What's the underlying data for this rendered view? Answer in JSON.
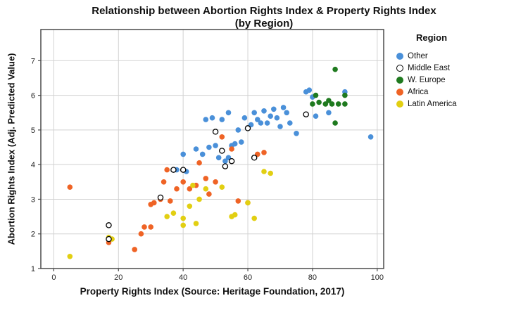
{
  "chart_data": {
    "type": "scatter",
    "title": "Relationship between Abortion Rights Index & Property Rights Index (by Region)",
    "title_lines": [
      "Relationship between Abortion Rights Index & Property Rights Index",
      "(by Region)"
    ],
    "xlabel": "Property Rights Index (Source: Heritage Foundation, 2017)",
    "ylabel": "Abortion Rights Index (Adj. Predicted Value)",
    "xlim": [
      -4,
      102
    ],
    "ylim": [
      1,
      7.9
    ],
    "xticks": [
      0,
      20,
      40,
      60,
      80,
      100
    ],
    "yticks": [
      1,
      2,
      3,
      4,
      5,
      6,
      7
    ],
    "grid": true,
    "legend_title": "Region",
    "legend_position": "right-outside",
    "colors": {
      "frame": "#4a4a4a",
      "grid": "#d2d2d2",
      "background": "#ffffff"
    },
    "series": [
      {
        "name": "Other",
        "color": "#4a90d9",
        "marker": "circle",
        "fill": true,
        "points": [
          [
            38,
            3.85
          ],
          [
            40,
            4.3
          ],
          [
            41,
            3.8
          ],
          [
            44,
            4.45
          ],
          [
            46,
            4.3
          ],
          [
            47,
            5.3
          ],
          [
            48,
            4.5
          ],
          [
            49,
            5.35
          ],
          [
            50,
            4.55
          ],
          [
            51,
            4.2
          ],
          [
            52,
            5.3
          ],
          [
            53,
            4.1
          ],
          [
            54,
            4.2
          ],
          [
            54,
            5.5
          ],
          [
            55,
            4.55
          ],
          [
            56,
            4.6
          ],
          [
            57,
            5.0
          ],
          [
            58,
            4.65
          ],
          [
            59,
            5.35
          ],
          [
            60,
            5.05
          ],
          [
            61,
            5.15
          ],
          [
            62,
            5.5
          ],
          [
            63,
            5.3
          ],
          [
            64,
            5.2
          ],
          [
            65,
            5.55
          ],
          [
            66,
            5.2
          ],
          [
            67,
            5.4
          ],
          [
            68,
            5.6
          ],
          [
            69,
            5.35
          ],
          [
            70,
            5.1
          ],
          [
            71,
            5.65
          ],
          [
            72,
            5.5
          ],
          [
            73,
            5.2
          ],
          [
            75,
            4.9
          ],
          [
            78,
            6.1
          ],
          [
            79,
            6.15
          ],
          [
            80,
            5.95
          ],
          [
            81,
            5.4
          ],
          [
            85,
            5.5
          ],
          [
            90,
            6.1
          ],
          [
            98,
            4.8
          ]
        ]
      },
      {
        "name": "Middle East",
        "color": "#000000",
        "marker": "open-circle",
        "fill": false,
        "points": [
          [
            17,
            2.25
          ],
          [
            17,
            1.85
          ],
          [
            33,
            3.05
          ],
          [
            37,
            3.85
          ],
          [
            40,
            3.85
          ],
          [
            50,
            4.95
          ],
          [
            52,
            4.4
          ],
          [
            53,
            3.95
          ],
          [
            55,
            4.1
          ],
          [
            60,
            5.05
          ],
          [
            62,
            4.2
          ],
          [
            78,
            5.45
          ]
        ]
      },
      {
        "name": "W. Europe",
        "color": "#1f7a1f",
        "marker": "circle",
        "fill": true,
        "points": [
          [
            80,
            5.75
          ],
          [
            81,
            6.0
          ],
          [
            82,
            5.8
          ],
          [
            84,
            5.75
          ],
          [
            85,
            5.85
          ],
          [
            86,
            5.75
          ],
          [
            87,
            6.75
          ],
          [
            87,
            5.2
          ],
          [
            88,
            5.75
          ],
          [
            90,
            6.0
          ],
          [
            90,
            5.75
          ]
        ]
      },
      {
        "name": "Africa",
        "color": "#ef6325",
        "marker": "circle",
        "fill": true,
        "points": [
          [
            5,
            3.35
          ],
          [
            17,
            1.75
          ],
          [
            25,
            1.55
          ],
          [
            27,
            2.0
          ],
          [
            28,
            2.2
          ],
          [
            30,
            2.2
          ],
          [
            30,
            2.85
          ],
          [
            31,
            2.9
          ],
          [
            33,
            3.0
          ],
          [
            34,
            3.5
          ],
          [
            35,
            3.85
          ],
          [
            36,
            2.95
          ],
          [
            38,
            3.3
          ],
          [
            40,
            3.5
          ],
          [
            42,
            3.3
          ],
          [
            44,
            3.4
          ],
          [
            45,
            4.05
          ],
          [
            47,
            3.6
          ],
          [
            48,
            3.15
          ],
          [
            50,
            3.5
          ],
          [
            52,
            4.8
          ],
          [
            55,
            4.45
          ],
          [
            57,
            2.95
          ],
          [
            60,
            2.9
          ],
          [
            63,
            4.3
          ],
          [
            65,
            4.35
          ]
        ]
      },
      {
        "name": "Latin America",
        "color": "#e2cf12",
        "marker": "circle",
        "fill": true,
        "points": [
          [
            5,
            1.35
          ],
          [
            17,
            1.9
          ],
          [
            18,
            1.85
          ],
          [
            35,
            2.5
          ],
          [
            37,
            2.6
          ],
          [
            40,
            2.25
          ],
          [
            40,
            2.45
          ],
          [
            42,
            2.8
          ],
          [
            43,
            3.4
          ],
          [
            44,
            2.3
          ],
          [
            45,
            3.0
          ],
          [
            47,
            3.3
          ],
          [
            52,
            3.35
          ],
          [
            55,
            2.5
          ],
          [
            56,
            2.55
          ],
          [
            60,
            2.9
          ],
          [
            62,
            2.45
          ],
          [
            65,
            3.8
          ],
          [
            67,
            3.75
          ]
        ]
      }
    ]
  }
}
